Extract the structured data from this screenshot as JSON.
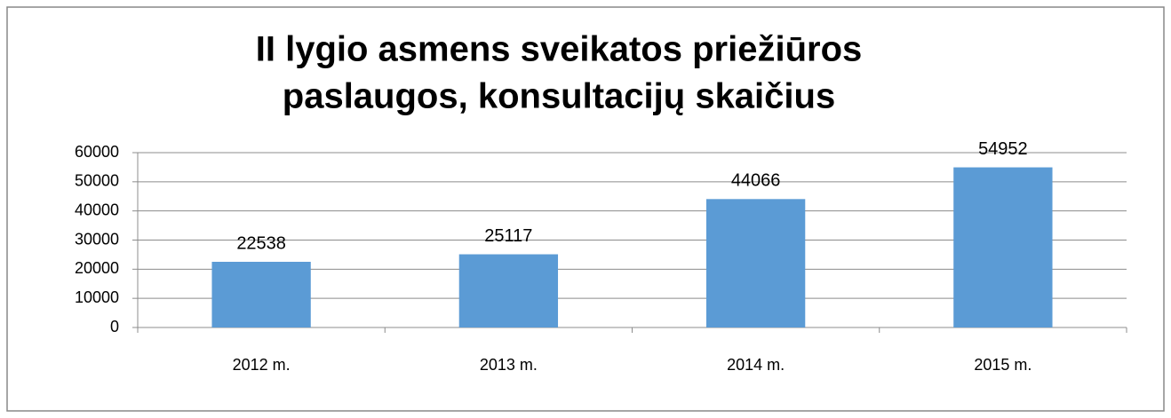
{
  "chart_data": {
    "type": "bar",
    "title": [
      "II lygio asmens sveikatos priežiūros",
      "paslaugos, konsultacijų skaičius"
    ],
    "categories": [
      "2012 m.",
      "2013 m.",
      "2014 m.",
      "2015 m."
    ],
    "values": [
      22538,
      25117,
      44066,
      54952
    ],
    "color": "#5b9bd5",
    "ylim": [
      0,
      60000
    ],
    "yticks": [
      0,
      10000,
      20000,
      30000,
      40000,
      50000,
      60000
    ],
    "grid": true
  }
}
